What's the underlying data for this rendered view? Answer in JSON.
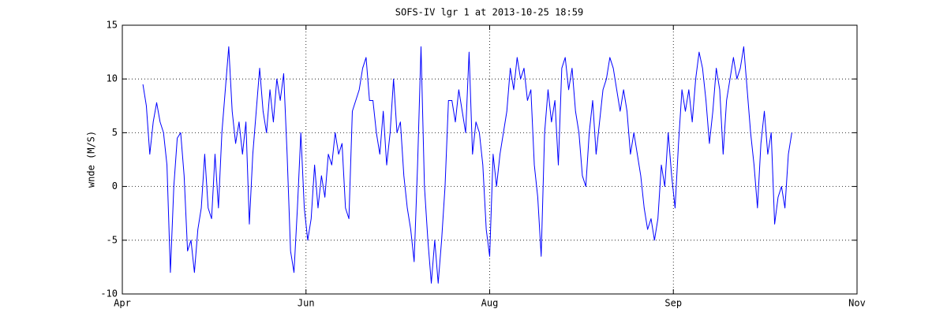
{
  "chart_data": {
    "type": "line",
    "title": "SOFS-IV lgr 1 at 2013-10-25 18:59",
    "y_label": "wnde (M/S)",
    "color": "#0000ff",
    "grid": true,
    "xlim": [
      0,
      214
    ],
    "xticks": [
      {
        "value": 0,
        "label": "Apr"
      },
      {
        "value": 53.5,
        "label": "Jun"
      },
      {
        "value": 107,
        "label": "Aug"
      },
      {
        "value": 160.5,
        "label": "Sep"
      },
      {
        "value": 214,
        "label": "Nov"
      }
    ],
    "ylim": [
      -10,
      15
    ],
    "yticks": [
      -10,
      -5,
      0,
      5,
      10,
      15
    ],
    "x": [
      6,
      7,
      8,
      9,
      10,
      11,
      12,
      13,
      14,
      15,
      16,
      17,
      18,
      19,
      20,
      21,
      22,
      23,
      24,
      25,
      26,
      27,
      28,
      29,
      30,
      31,
      32,
      33,
      34,
      35,
      36,
      37,
      38,
      39,
      40,
      41,
      42,
      43,
      44,
      45,
      46,
      47,
      48,
      49,
      50,
      51,
      52,
      53,
      54,
      55,
      56,
      57,
      58,
      59,
      60,
      61,
      62,
      63,
      64,
      65,
      66,
      67,
      68,
      69,
      70,
      71,
      72,
      73,
      74,
      75,
      76,
      77,
      78,
      79,
      80,
      81,
      82,
      83,
      84,
      85,
      86,
      87,
      88,
      89,
      90,
      91,
      92,
      93,
      94,
      95,
      96,
      97,
      98,
      99,
      100,
      101,
      102,
      103,
      104,
      105,
      106,
      107,
      108,
      109,
      110,
      111,
      112,
      113,
      114,
      115,
      116,
      117,
      118,
      119,
      120,
      121,
      122,
      123,
      124,
      125,
      126,
      127,
      128,
      129,
      130,
      131,
      132,
      133,
      134,
      135,
      136,
      137,
      138,
      139,
      140,
      141,
      142,
      143,
      144,
      145,
      146,
      147,
      148,
      149,
      150,
      151,
      152,
      153,
      154,
      155,
      156,
      157,
      158,
      159,
      160,
      161,
      162,
      163,
      164,
      165,
      166,
      167,
      168,
      169,
      170,
      171,
      172,
      173,
      174,
      175,
      176,
      177,
      178,
      179,
      180,
      181,
      182,
      183,
      184,
      185,
      186,
      187,
      188,
      189,
      190,
      191,
      192,
      193,
      194,
      195
    ],
    "values": [
      9.5,
      7.5,
      3,
      6,
      7.8,
      6,
      5,
      2,
      -8,
      0,
      4.5,
      5,
      1,
      -6,
      -5,
      -8,
      -4,
      -2,
      3,
      -2,
      -3,
      3,
      -2,
      5,
      9,
      13,
      7,
      4,
      6,
      3,
      6,
      -3.5,
      3,
      7,
      11,
      7,
      5,
      9,
      6,
      10,
      8,
      10.5,
      3,
      -6,
      -8,
      -2,
      5,
      -2,
      -5,
      -3,
      2,
      -2,
      1,
      -1,
      3,
      2,
      5,
      3,
      4,
      -2,
      -3,
      7,
      8,
      9,
      11,
      12,
      8,
      8,
      5,
      3,
      7,
      2,
      5,
      10,
      5,
      6,
      1,
      -2,
      -4,
      -7,
      2,
      13,
      0,
      -5,
      -9,
      -5,
      -9,
      -5,
      0,
      8,
      8,
      6,
      9,
      7,
      5,
      12.5,
      3,
      6,
      5,
      2,
      -4,
      -6.5,
      3,
      0,
      3,
      5,
      7,
      11,
      9,
      12,
      10,
      11,
      8,
      9,
      2,
      -1,
      -6.5,
      5,
      9,
      6,
      8,
      2,
      11,
      12,
      9,
      11,
      7,
      5,
      1,
      0,
      5,
      8,
      3,
      6,
      9,
      10,
      12,
      11,
      9,
      7,
      9,
      7,
      3,
      5,
      3,
      1,
      -2,
      -4,
      -3,
      -5,
      -3,
      2,
      0,
      5,
      1,
      -2,
      4,
      9,
      7,
      9,
      6,
      10,
      12.5,
      11,
      8,
      4,
      7,
      11,
      9,
      3,
      8,
      10,
      12,
      10,
      11,
      13,
      9,
      5,
      2,
      -2,
      4,
      7,
      3,
      5,
      -3.5,
      -1,
      0,
      -2,
      3,
      5
    ]
  }
}
